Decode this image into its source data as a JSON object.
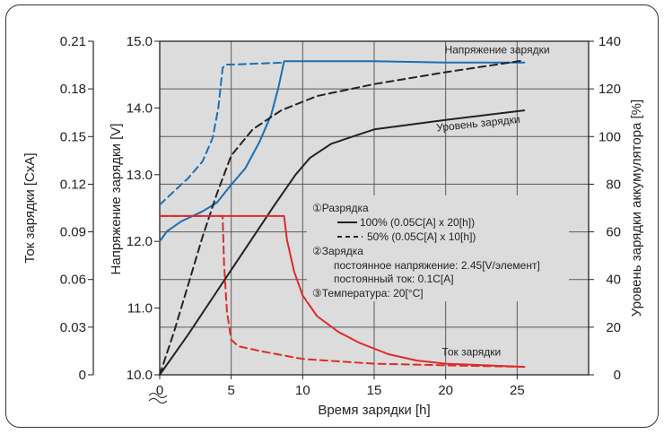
{
  "chart_data": {
    "type": "line",
    "xlabel": "Время зарядки [h]",
    "x_ticks": [
      "0",
      "5",
      "10",
      "15",
      "20",
      "25"
    ],
    "xlim": [
      0,
      30
    ],
    "axes": {
      "current": {
        "label": "Ток зарядки [CxA]",
        "ylim": [
          0,
          0.21
        ],
        "ticks": [
          "0",
          "0.03",
          "0.06",
          "0.09",
          "0.12",
          "0.15",
          "0.18",
          "0.21"
        ]
      },
      "voltage": {
        "label": "Напряжение зарядки [V]",
        "ylim": [
          10.0,
          15.0
        ],
        "ticks": [
          "10.0",
          "11.0",
          "12.0",
          "13.0",
          "14.0",
          "15.0"
        ]
      },
      "level": {
        "label": "Уровень зарядки аккумулятора [%]",
        "ylim": [
          0,
          140
        ],
        "ticks": [
          "0",
          "20",
          "40",
          "60",
          "80",
          "100",
          "120",
          "140"
        ]
      }
    },
    "grid": true,
    "series": [
      {
        "name": "Напряжение зарядки",
        "variant": "100%",
        "axis": "voltage",
        "color": "#1a6fb4",
        "dash": false,
        "points": [
          [
            0,
            12.0
          ],
          [
            0.5,
            12.15
          ],
          [
            1.5,
            12.3
          ],
          [
            3,
            12.45
          ],
          [
            4,
            12.58
          ],
          [
            5,
            12.85
          ],
          [
            6,
            13.1
          ],
          [
            7,
            13.5
          ],
          [
            7.8,
            13.9
          ],
          [
            8.3,
            14.3
          ],
          [
            8.7,
            14.7
          ],
          [
            10,
            14.7
          ],
          [
            15,
            14.7
          ],
          [
            20,
            14.68
          ],
          [
            25.5,
            14.68
          ]
        ]
      },
      {
        "name": "Напряжение зарядки",
        "variant": "50%",
        "axis": "voltage",
        "color": "#1a6fb4",
        "dash": true,
        "points": [
          [
            0,
            12.55
          ],
          [
            1,
            12.75
          ],
          [
            2,
            12.95
          ],
          [
            3,
            13.2
          ],
          [
            3.7,
            13.55
          ],
          [
            4.1,
            14.0
          ],
          [
            4.4,
            14.6
          ],
          [
            4.6,
            14.65
          ],
          [
            5,
            14.65
          ],
          [
            8.7,
            14.68
          ]
        ]
      },
      {
        "name": "Уровень зарядки",
        "variant": "100%",
        "axis": "level",
        "color": "#222222",
        "dash": false,
        "points": [
          [
            0,
            0
          ],
          [
            2,
            17
          ],
          [
            4,
            35
          ],
          [
            6,
            53
          ],
          [
            8,
            71
          ],
          [
            9.5,
            84
          ],
          [
            10.5,
            91
          ],
          [
            12,
            97
          ],
          [
            15,
            103
          ],
          [
            20,
            107
          ],
          [
            25.5,
            111
          ]
        ]
      },
      {
        "name": "Уровень зарядки",
        "variant": "50%",
        "axis": "level",
        "color": "#222222",
        "dash": true,
        "points": [
          [
            0,
            0
          ],
          [
            1,
            18
          ],
          [
            2,
            38
          ],
          [
            3,
            58
          ],
          [
            4,
            76
          ],
          [
            5,
            92
          ],
          [
            6.5,
            103
          ],
          [
            8.5,
            111
          ],
          [
            11,
            117
          ],
          [
            15,
            122
          ],
          [
            20,
            127
          ],
          [
            25.5,
            132
          ]
        ]
      },
      {
        "name": "Ток зарядки",
        "variant": "100%",
        "axis": "current",
        "color": "#e02a2a",
        "dash": false,
        "points": [
          [
            0,
            0.1
          ],
          [
            8.7,
            0.1
          ],
          [
            8.9,
            0.085
          ],
          [
            9.4,
            0.065
          ],
          [
            10,
            0.05
          ],
          [
            11,
            0.037
          ],
          [
            12.5,
            0.027
          ],
          [
            14,
            0.02
          ],
          [
            16,
            0.013
          ],
          [
            18,
            0.009
          ],
          [
            20,
            0.007
          ],
          [
            25.5,
            0.005
          ]
        ]
      },
      {
        "name": "Ток зарядки",
        "variant": "50%",
        "axis": "current",
        "color": "#e02a2a",
        "dash": true,
        "points": [
          [
            0,
            0.1
          ],
          [
            4.4,
            0.1
          ],
          [
            4.5,
            0.07
          ],
          [
            4.7,
            0.04
          ],
          [
            5,
            0.022
          ],
          [
            5.5,
            0.018
          ],
          [
            7,
            0.015
          ],
          [
            10,
            0.01
          ],
          [
            15,
            0.007
          ],
          [
            20,
            0.006
          ],
          [
            25.5,
            0.005
          ]
        ]
      }
    ],
    "series_labels": [
      "Напряжение зарядки",
      "Уровень зарядки",
      "Ток зарядки"
    ],
    "annotation": {
      "item1_title": "①Разрядка",
      "item1_line_solid": "100% (0.05C[A] x 20[h])",
      "item1_line_dash": "50% (0.05C[A] x 10[h])",
      "item2_title": "②Зарядка",
      "item2_line1": "постоянное напряжение: 2.45[V/элемент]",
      "item2_line2": "постоянный ток: 0.1C[A]",
      "item3_title": "③Температура: 20[°C]"
    }
  }
}
